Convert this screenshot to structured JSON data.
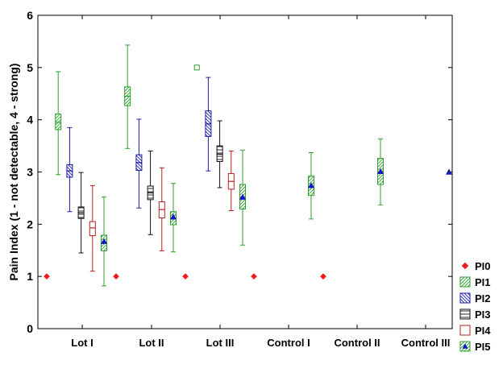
{
  "chart_data": {
    "type": "box",
    "title": "",
    "xlabel": "",
    "ylabel": "Pain Index (1 - not detectable, 4 - strong)",
    "ylim": [
      0,
      6
    ],
    "yticks": [
      "0",
      "1",
      "2",
      "3",
      "4",
      "5",
      "6"
    ],
    "categories": [
      "Lot I",
      "Lot II",
      "Lot III",
      "Control I",
      "Control II",
      "Control III"
    ],
    "legend_position": "bottom-right",
    "series": [
      {
        "name": "PI0",
        "color": "#ee1c1c",
        "marker": "diamond",
        "style": "point"
      },
      {
        "name": "PI1",
        "color": "#2e9e2e",
        "pattern": "diagonal",
        "style": "box"
      },
      {
        "name": "PI2",
        "color": "#1c1ca8",
        "pattern": "diagonal",
        "style": "box"
      },
      {
        "name": "PI3",
        "color": "#111111",
        "pattern": "horizontal",
        "style": "box"
      },
      {
        "name": "PI4",
        "color": "#b52020",
        "pattern": "none",
        "style": "box"
      },
      {
        "name": "PI5",
        "color": "#2e9e2e",
        "pattern": "diagonal",
        "marker": "triangle",
        "marker_color": "#1515c8",
        "style": "box"
      }
    ],
    "groups": [
      {
        "category": "Lot I",
        "PI0": {
          "point": 1
        },
        "PI1": {
          "whisker_low": 2.95,
          "q1": 3.81,
          "median": 3.95,
          "q3": 4.11,
          "whisker_high": 4.92
        },
        "PI2": {
          "whisker_low": 2.24,
          "q1": 2.9,
          "median": 3.02,
          "q3": 3.14,
          "whisker_high": 3.85
        },
        "PI3": {
          "whisker_low": 1.45,
          "q1": 2.11,
          "median": 2.22,
          "q3": 2.33,
          "whisker_high": 2.99
        },
        "PI4": {
          "whisker_low": 1.1,
          "q1": 1.78,
          "median": 1.93,
          "q3": 2.05,
          "whisker_high": 2.74
        },
        "PI5": {
          "whisker_low": 0.82,
          "q1": 1.49,
          "median": 1.66,
          "q3": 1.79,
          "whisker_high": 2.52,
          "point": 1.67
        }
      },
      {
        "category": "Lot II",
        "PI0": {
          "point": 1
        },
        "PI1": {
          "whisker_low": 3.45,
          "q1": 4.27,
          "median": 4.45,
          "q3": 4.63,
          "whisker_high": 5.43
        },
        "PI2": {
          "whisker_low": 2.31,
          "q1": 3.03,
          "median": 3.18,
          "q3": 3.33,
          "whisker_high": 4.01
        },
        "PI3": {
          "whisker_low": 1.8,
          "q1": 2.47,
          "median": 2.6,
          "q3": 2.73,
          "whisker_high": 3.4
        },
        "PI4": {
          "whisker_low": 1.49,
          "q1": 2.12,
          "median": 2.28,
          "q3": 2.43,
          "whisker_high": 3.08
        },
        "PI5": {
          "whisker_low": 1.47,
          "q1": 1.99,
          "median": 2.12,
          "q3": 2.24,
          "whisker_high": 2.78,
          "point": 2.14
        }
      },
      {
        "category": "Lot III",
        "PI0": {
          "point": 1
        },
        "PI1": {
          "outlier": 5
        },
        "PI2": {
          "whisker_low": 3.02,
          "q1": 3.68,
          "median": 3.92,
          "q3": 4.17,
          "whisker_high": 4.81
        },
        "PI3": {
          "whisker_low": 2.7,
          "q1": 3.2,
          "median": 3.34,
          "q3": 3.5,
          "whisker_high": 3.98
        },
        "PI4": {
          "whisker_low": 2.26,
          "q1": 2.67,
          "median": 2.82,
          "q3": 2.97,
          "whisker_high": 3.4
        },
        "PI5": {
          "whisker_low": 1.6,
          "q1": 2.29,
          "median": 2.52,
          "q3": 2.76,
          "whisker_high": 3.42,
          "point": 2.52
        }
      },
      {
        "category": "Control I",
        "PI0": {
          "point": 1
        },
        "PI5": {
          "whisker_low": 2.1,
          "q1": 2.55,
          "median": 2.73,
          "q3": 2.92,
          "whisker_high": 3.37,
          "point": 2.74
        }
      },
      {
        "category": "Control II",
        "PI0": {
          "point": 1
        },
        "PI5": {
          "whisker_low": 2.37,
          "q1": 2.76,
          "median": 3.01,
          "q3": 3.26,
          "whisker_high": 3.63,
          "point": 3.01
        }
      },
      {
        "category": "Control III",
        "PI5": {
          "point": 3
        }
      }
    ]
  }
}
